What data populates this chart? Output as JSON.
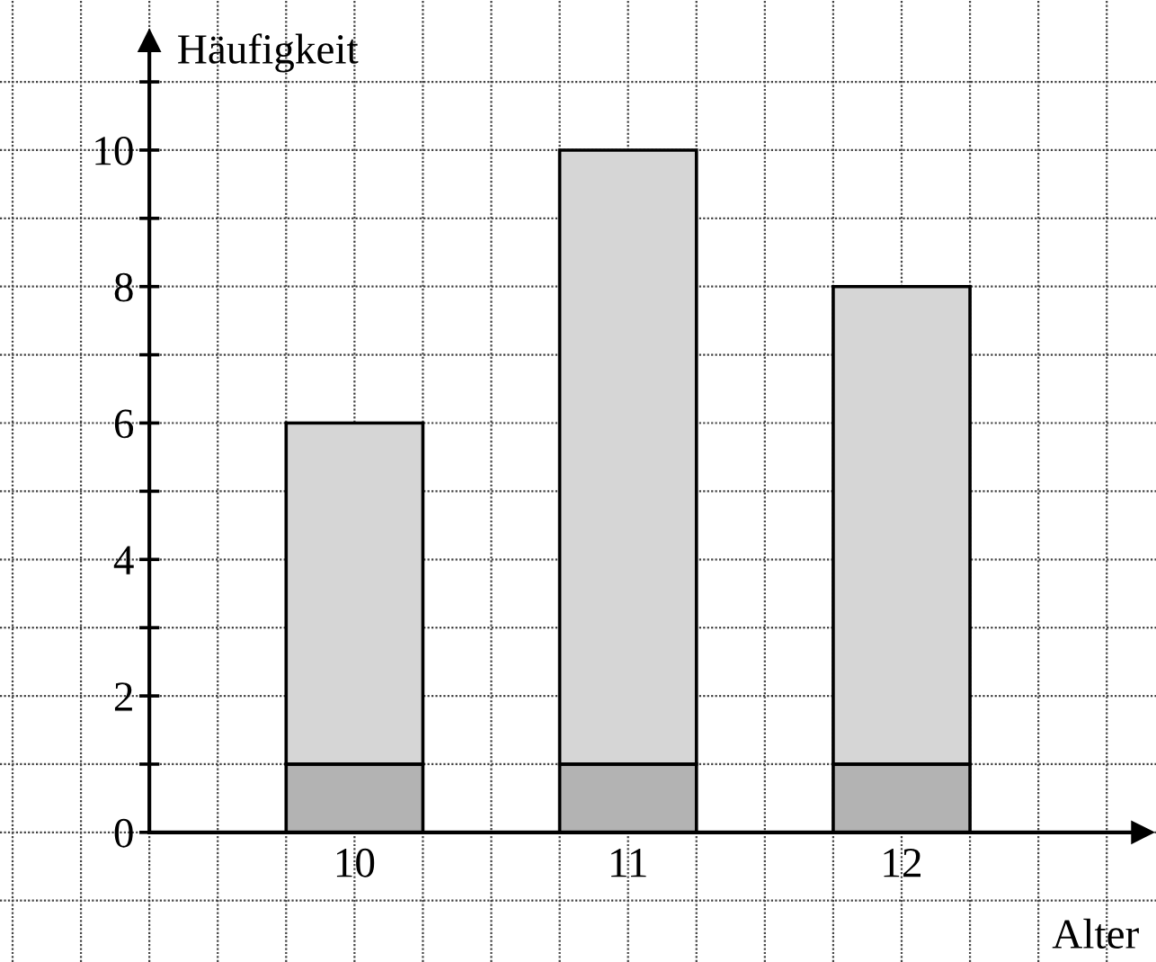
{
  "chart_data": {
    "type": "bar",
    "stacked": true,
    "xlabel": "Alter",
    "ylabel": "Häufigkeit",
    "categories": [
      "10",
      "11",
      "12"
    ],
    "series": [
      {
        "color": "#b3b3b3",
        "values": [
          1,
          1,
          1
        ]
      },
      {
        "color": "#d6d6d6",
        "values": [
          5,
          9,
          7
        ]
      }
    ],
    "ylim": [
      -1.9,
      12.2
    ],
    "yticks": [
      {
        "value": 0,
        "label": "0"
      },
      {
        "value": 1,
        "label": null
      },
      2,
      {
        "value": 3,
        "label": null
      },
      4,
      {
        "value": 5,
        "label": null
      },
      6,
      {
        "value": 7,
        "label": null
      },
      8,
      {
        "value": 9,
        "label": null
      },
      10,
      {
        "value": 11,
        "label": null
      }
    ],
    "grid": true
  }
}
